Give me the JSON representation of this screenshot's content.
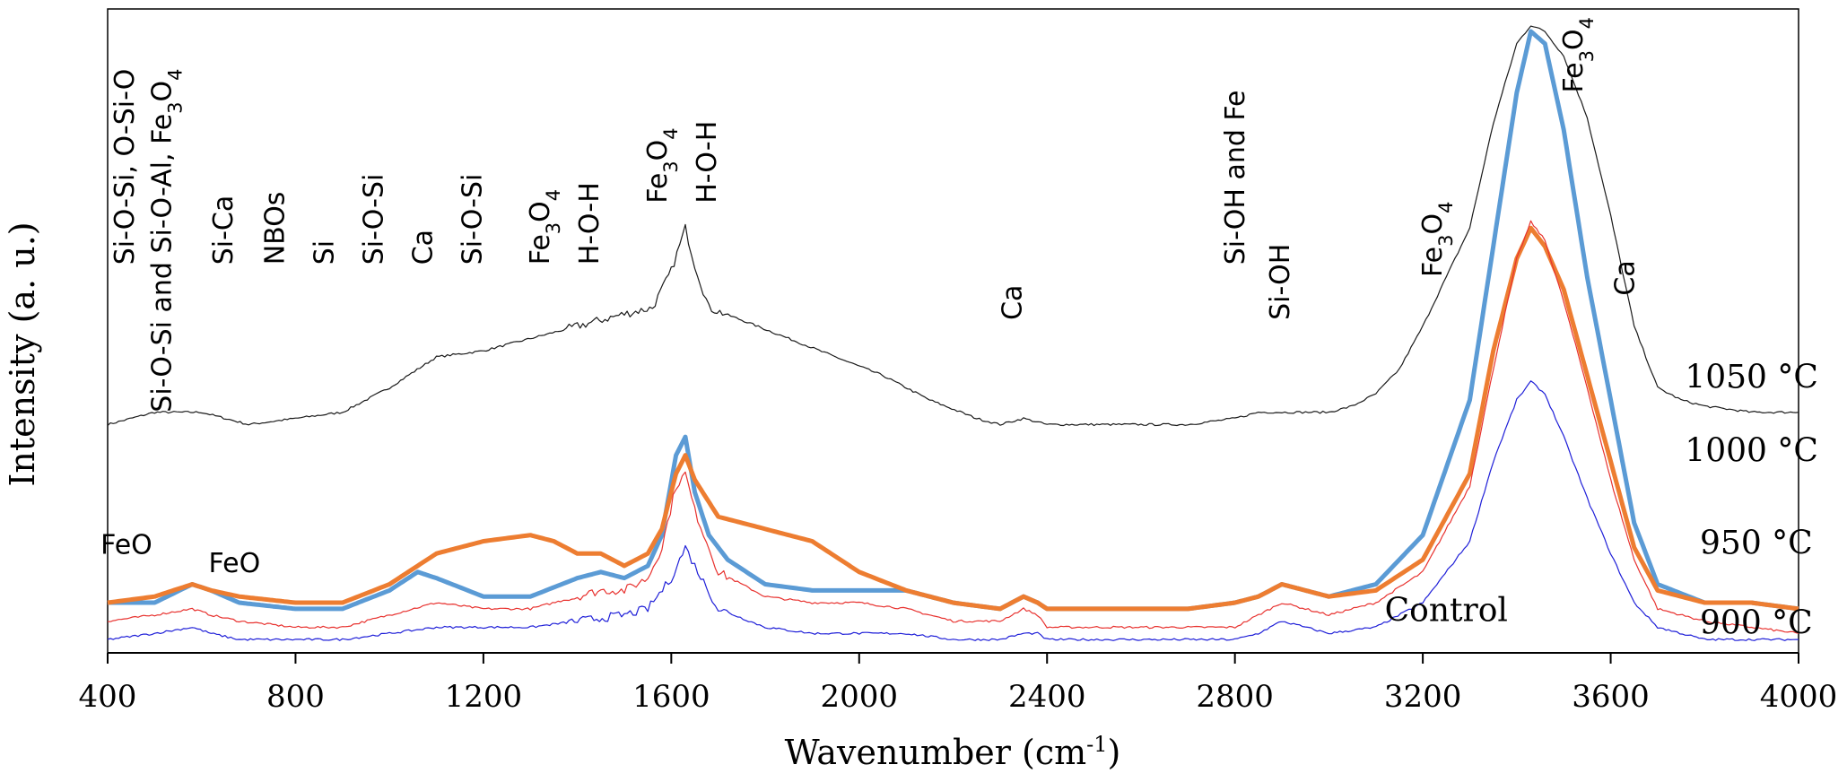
{
  "chart_data": {
    "type": "line",
    "title": "",
    "xlabel": "Wavenumber (cm",
    "xlabel_sup": "-1",
    "xlabel_close": ")",
    "ylabel": "Intensity (a. u.)",
    "xlim": [
      400,
      4000
    ],
    "ylim": [
      0,
      100
    ],
    "xticks": [
      400,
      800,
      1200,
      1600,
      2000,
      2400,
      2800,
      3200,
      3600,
      4000
    ],
    "grid": false,
    "series": [
      {
        "name": "1050 °C",
        "color": "#1a1a1a",
        "width": 1.2,
        "points": [
          [
            400,
            36
          ],
          [
            500,
            38
          ],
          [
            600,
            38
          ],
          [
            700,
            36
          ],
          [
            800,
            37
          ],
          [
            900,
            38
          ],
          [
            1000,
            42
          ],
          [
            1100,
            47
          ],
          [
            1200,
            48
          ],
          [
            1300,
            50
          ],
          [
            1400,
            52
          ],
          [
            1500,
            54
          ],
          [
            1560,
            55
          ],
          [
            1600,
            61
          ],
          [
            1630,
            68
          ],
          [
            1650,
            62
          ],
          [
            1680,
            55
          ],
          [
            1750,
            53
          ],
          [
            1850,
            50
          ],
          [
            1950,
            47
          ],
          [
            2050,
            44
          ],
          [
            2150,
            40
          ],
          [
            2250,
            37
          ],
          [
            2300,
            36
          ],
          [
            2350,
            37
          ],
          [
            2400,
            36
          ],
          [
            2500,
            36
          ],
          [
            2600,
            36
          ],
          [
            2700,
            36
          ],
          [
            2800,
            37
          ],
          [
            2850,
            38
          ],
          [
            2900,
            38
          ],
          [
            2950,
            38
          ],
          [
            3000,
            38
          ],
          [
            3050,
            39
          ],
          [
            3100,
            41
          ],
          [
            3150,
            45
          ],
          [
            3200,
            52
          ],
          [
            3250,
            60
          ],
          [
            3300,
            68
          ],
          [
            3350,
            85
          ],
          [
            3400,
            98
          ],
          [
            3430,
            101
          ],
          [
            3460,
            100
          ],
          [
            3500,
            96
          ],
          [
            3550,
            86
          ],
          [
            3600,
            70
          ],
          [
            3650,
            52
          ],
          [
            3700,
            42
          ],
          [
            3750,
            40
          ],
          [
            3800,
            39
          ],
          [
            3900,
            38
          ],
          [
            4000,
            38
          ]
        ]
      },
      {
        "name": "1000 °C",
        "color": "#5b9bd5",
        "width": 5,
        "points": [
          [
            400,
            7
          ],
          [
            500,
            7
          ],
          [
            580,
            10
          ],
          [
            620,
            9
          ],
          [
            680,
            7
          ],
          [
            800,
            6
          ],
          [
            900,
            6
          ],
          [
            1000,
            9
          ],
          [
            1060,
            12
          ],
          [
            1100,
            11
          ],
          [
            1200,
            8
          ],
          [
            1300,
            8
          ],
          [
            1400,
            11
          ],
          [
            1450,
            12
          ],
          [
            1500,
            11
          ],
          [
            1550,
            13
          ],
          [
            1580,
            18
          ],
          [
            1610,
            31
          ],
          [
            1630,
            34
          ],
          [
            1650,
            25
          ],
          [
            1680,
            18
          ],
          [
            1720,
            14
          ],
          [
            1800,
            10
          ],
          [
            1900,
            9
          ],
          [
            2000,
            9
          ],
          [
            2100,
            9
          ],
          [
            2200,
            7
          ],
          [
            2300,
            6
          ],
          [
            2350,
            8
          ],
          [
            2380,
            7
          ],
          [
            2400,
            6
          ],
          [
            2500,
            6
          ],
          [
            2600,
            6
          ],
          [
            2700,
            6
          ],
          [
            2800,
            7
          ],
          [
            2850,
            8
          ],
          [
            2900,
            10
          ],
          [
            2950,
            9
          ],
          [
            3000,
            8
          ],
          [
            3100,
            10
          ],
          [
            3200,
            18
          ],
          [
            3300,
            40
          ],
          [
            3350,
            65
          ],
          [
            3400,
            90
          ],
          [
            3430,
            100
          ],
          [
            3460,
            98
          ],
          [
            3500,
            84
          ],
          [
            3550,
            60
          ],
          [
            3600,
            40
          ],
          [
            3650,
            20
          ],
          [
            3700,
            10
          ],
          [
            3800,
            7
          ],
          [
            3900,
            7
          ],
          [
            4000,
            6
          ]
        ]
      },
      {
        "name": "950 °C",
        "color": "#ed7d31",
        "width": 5,
        "points": [
          [
            400,
            7
          ],
          [
            500,
            8
          ],
          [
            580,
            10
          ],
          [
            620,
            9
          ],
          [
            680,
            8
          ],
          [
            800,
            7
          ],
          [
            900,
            7
          ],
          [
            1000,
            10
          ],
          [
            1100,
            15
          ],
          [
            1200,
            17
          ],
          [
            1300,
            18
          ],
          [
            1350,
            17
          ],
          [
            1400,
            15
          ],
          [
            1450,
            15
          ],
          [
            1500,
            13
          ],
          [
            1550,
            15
          ],
          [
            1580,
            19
          ],
          [
            1610,
            28
          ],
          [
            1630,
            31
          ],
          [
            1650,
            27
          ],
          [
            1700,
            21
          ],
          [
            1800,
            19
          ],
          [
            1900,
            17
          ],
          [
            2000,
            12
          ],
          [
            2100,
            9
          ],
          [
            2200,
            7
          ],
          [
            2300,
            6
          ],
          [
            2350,
            8
          ],
          [
            2380,
            7
          ],
          [
            2400,
            6
          ],
          [
            2500,
            6
          ],
          [
            2600,
            6
          ],
          [
            2700,
            6
          ],
          [
            2800,
            7
          ],
          [
            2850,
            8
          ],
          [
            2900,
            10
          ],
          [
            2950,
            9
          ],
          [
            3000,
            8
          ],
          [
            3100,
            9
          ],
          [
            3200,
            14
          ],
          [
            3300,
            28
          ],
          [
            3350,
            48
          ],
          [
            3400,
            63
          ],
          [
            3430,
            68
          ],
          [
            3460,
            65
          ],
          [
            3500,
            58
          ],
          [
            3550,
            44
          ],
          [
            3600,
            30
          ],
          [
            3650,
            16
          ],
          [
            3700,
            9
          ],
          [
            3800,
            7
          ],
          [
            3900,
            7
          ],
          [
            4000,
            6
          ]
        ]
      },
      {
        "name": "900 °C",
        "color": "#e8322f",
        "width": 1.2,
        "points": [
          [
            400,
            4
          ],
          [
            500,
            5
          ],
          [
            580,
            6
          ],
          [
            620,
            5
          ],
          [
            680,
            4
          ],
          [
            800,
            3
          ],
          [
            900,
            3
          ],
          [
            1000,
            5
          ],
          [
            1100,
            7
          ],
          [
            1200,
            6
          ],
          [
            1300,
            6
          ],
          [
            1400,
            8
          ],
          [
            1450,
            9
          ],
          [
            1500,
            9
          ],
          [
            1550,
            11
          ],
          [
            1580,
            16
          ],
          [
            1610,
            26
          ],
          [
            1630,
            28
          ],
          [
            1650,
            22
          ],
          [
            1700,
            12
          ],
          [
            1800,
            8
          ],
          [
            1900,
            7
          ],
          [
            2000,
            7
          ],
          [
            2100,
            6
          ],
          [
            2200,
            4
          ],
          [
            2300,
            4
          ],
          [
            2350,
            6
          ],
          [
            2380,
            5
          ],
          [
            2400,
            3
          ],
          [
            2500,
            3
          ],
          [
            2600,
            3
          ],
          [
            2700,
            3
          ],
          [
            2800,
            3
          ],
          [
            2850,
            5
          ],
          [
            2900,
            7
          ],
          [
            2950,
            6
          ],
          [
            3000,
            5
          ],
          [
            3100,
            7
          ],
          [
            3200,
            12
          ],
          [
            3300,
            26
          ],
          [
            3350,
            45
          ],
          [
            3400,
            63
          ],
          [
            3430,
            69
          ],
          [
            3460,
            66
          ],
          [
            3500,
            56
          ],
          [
            3550,
            42
          ],
          [
            3600,
            27
          ],
          [
            3650,
            14
          ],
          [
            3700,
            6
          ],
          [
            3800,
            4
          ],
          [
            3900,
            3
          ],
          [
            4000,
            2
          ]
        ]
      },
      {
        "name": "Control",
        "color": "#1f1fd8",
        "width": 1.2,
        "points": [
          [
            400,
            1
          ],
          [
            500,
            2
          ],
          [
            580,
            3
          ],
          [
            620,
            2
          ],
          [
            680,
            1
          ],
          [
            800,
            1
          ],
          [
            900,
            1
          ],
          [
            1000,
            2
          ],
          [
            1100,
            3
          ],
          [
            1200,
            3
          ],
          [
            1300,
            3
          ],
          [
            1400,
            4
          ],
          [
            1500,
            5
          ],
          [
            1550,
            6
          ],
          [
            1600,
            11
          ],
          [
            1630,
            16
          ],
          [
            1650,
            13
          ],
          [
            1700,
            6
          ],
          [
            1800,
            3
          ],
          [
            1900,
            2
          ],
          [
            2000,
            2
          ],
          [
            2100,
            2
          ],
          [
            2200,
            1
          ],
          [
            2300,
            1
          ],
          [
            2350,
            2
          ],
          [
            2380,
            2
          ],
          [
            2400,
            1
          ],
          [
            2500,
            1
          ],
          [
            2600,
            1
          ],
          [
            2700,
            1
          ],
          [
            2800,
            1
          ],
          [
            2850,
            2
          ],
          [
            2900,
            4
          ],
          [
            2950,
            3
          ],
          [
            3000,
            2
          ],
          [
            3100,
            3
          ],
          [
            3200,
            7
          ],
          [
            3300,
            17
          ],
          [
            3350,
            30
          ],
          [
            3400,
            40
          ],
          [
            3430,
            43
          ],
          [
            3460,
            41
          ],
          [
            3500,
            34
          ],
          [
            3550,
            24
          ],
          [
            3600,
            15
          ],
          [
            3650,
            7
          ],
          [
            3700,
            3
          ],
          [
            3800,
            1
          ],
          [
            3900,
            1
          ],
          [
            4000,
            1
          ]
        ]
      }
    ],
    "series_labels": [
      {
        "text": "1050 °C",
        "x": 3900,
        "y": 42
      },
      {
        "text": "1000 °C",
        "x": 3900,
        "y": 30
      },
      {
        "text": "950 °C",
        "x": 3910,
        "y": 15
      },
      {
        "text": "Control",
        "x": 3250,
        "y": 4
      },
      {
        "text": "900 °C",
        "x": 3910,
        "y": 2
      }
    ],
    "annotations": [
      {
        "text": "Si-O-Si, O-Si-O",
        "x": 455,
        "y": 62
      },
      {
        "text": "Si-O-Si and Si-O-Al, ",
        "chem": "Fe3O4",
        "x": 535,
        "y": 38
      },
      {
        "text": "Si-Ca",
        "x": 665,
        "y": 62
      },
      {
        "text": "NBOs",
        "x": 775,
        "y": 62
      },
      {
        "text": "Si",
        "x": 880,
        "y": 62
      },
      {
        "text": "Si-O-Si",
        "x": 985,
        "y": 62
      },
      {
        "text": "Ca",
        "x": 1090,
        "y": 62
      },
      {
        "text": "Si-O-Si",
        "x": 1195,
        "y": 62
      },
      {
        "text": "",
        "chem": "Fe3O4",
        "x": 1340,
        "y": 62
      },
      {
        "text": "H-O-H",
        "x": 1445,
        "y": 62
      },
      {
        "text": "",
        "chem": "Fe3O4",
        "x": 1590,
        "y": 72
      },
      {
        "text": "H-O-H",
        "x": 1695,
        "y": 72
      },
      {
        "text": "Ca",
        "x": 2345,
        "y": 53
      },
      {
        "text": "Si-OH and Fe",
        "x": 2820,
        "y": 62
      },
      {
        "text": "Si-OH",
        "x": 2915,
        "y": 53
      },
      {
        "text": "",
        "chem": "Fe3O4",
        "x": 3240,
        "y": 60
      },
      {
        "text": "",
        "chem": "Fe3O4",
        "x": 3540,
        "y": 90
      },
      {
        "text": "Ca",
        "x": 3650,
        "y": 57
      },
      {
        "text": "FeO",
        "x": 440,
        "y": 15,
        "horizontal": true
      },
      {
        "text": "FeO",
        "x": 670,
        "y": 12,
        "horizontal": true
      }
    ]
  }
}
